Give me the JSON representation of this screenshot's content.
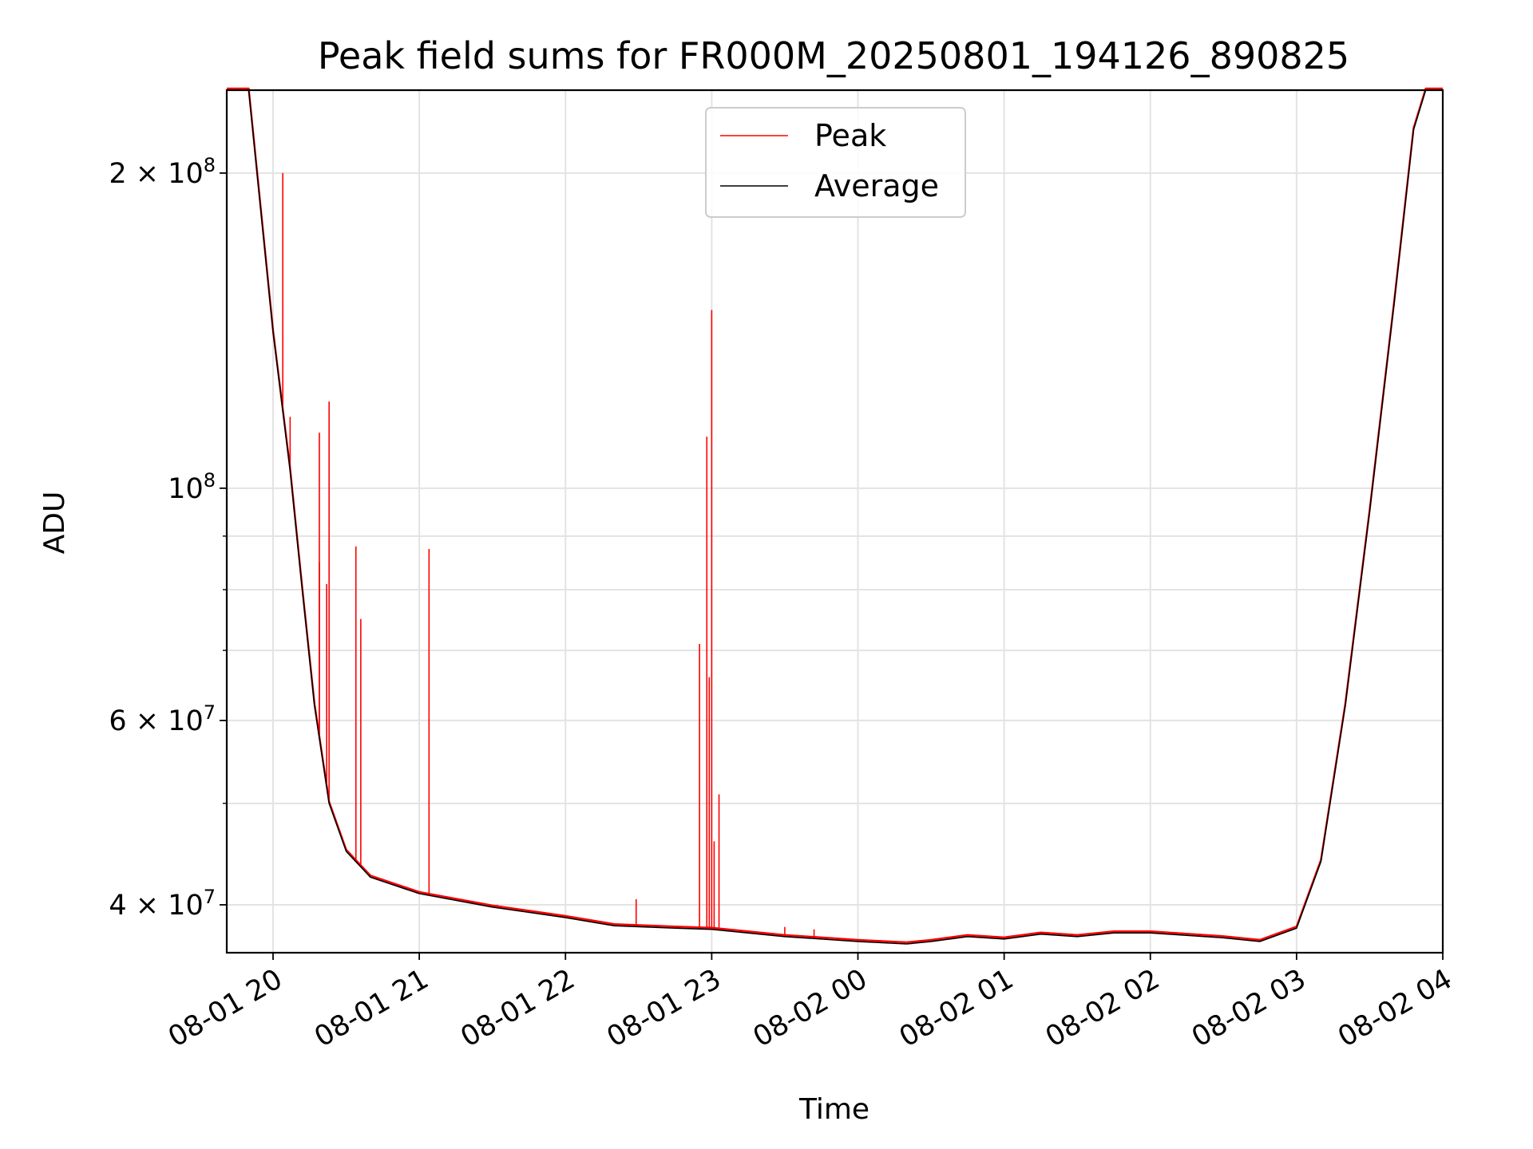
{
  "chart_data": {
    "type": "line",
    "title": "Peak field sums for FR000M_20250801_194126_890825",
    "xlabel": "Time",
    "ylabel": "ADU",
    "yscale": "log",
    "ylim": [
      36000000,
      240000000
    ],
    "xlim": [
      "2025-08-01 19:41",
      "2025-08-02 04:00"
    ],
    "grid": true,
    "legend_position": "top-center",
    "x_ticks": [
      "08-01 20",
      "08-01 21",
      "08-01 22",
      "08-01 23",
      "08-02 00",
      "08-02 01",
      "08-02 02",
      "08-02 03",
      "08-02 04"
    ],
    "x_tick_times": [
      "2025-08-01 20:00",
      "2025-08-01 21:00",
      "2025-08-01 22:00",
      "2025-08-01 23:00",
      "2025-08-02 00:00",
      "2025-08-02 01:00",
      "2025-08-02 02:00",
      "2025-08-02 03:00",
      "2025-08-02 04:00"
    ],
    "y_major_ticks": [
      {
        "value": 40000000,
        "mantissa": "4",
        "exp": "7"
      },
      {
        "value": 60000000,
        "mantissa": "6",
        "exp": "7"
      },
      {
        "value": 100000000,
        "mantissa": "",
        "exp": "8"
      },
      {
        "value": 200000000,
        "mantissa": "2",
        "exp": "8"
      }
    ],
    "y_minor_gridlines": [
      50000000,
      70000000,
      80000000,
      90000000
    ],
    "series": [
      {
        "name": "Peak",
        "color": "#ff0000",
        "spikes": [
          {
            "time": "2025-08-01 20:04",
            "value": 200000000
          },
          {
            "time": "2025-08-01 20:07",
            "value": 117000000
          },
          {
            "time": "2025-08-01 20:19",
            "value": 113000000
          },
          {
            "time": "2025-08-01 20:19",
            "value": 85000000
          },
          {
            "time": "2025-08-01 20:22",
            "value": 81000000
          },
          {
            "time": "2025-08-01 20:23",
            "value": 121000000
          },
          {
            "time": "2025-08-01 20:34",
            "value": 88000000
          },
          {
            "time": "2025-08-01 20:36",
            "value": 75000000
          },
          {
            "time": "2025-08-01 21:04",
            "value": 87500000
          },
          {
            "time": "2025-08-01 21:32",
            "value": 40000000
          },
          {
            "time": "2025-08-01 22:29",
            "value": 40500000
          },
          {
            "time": "2025-08-01 22:55",
            "value": 71000000
          },
          {
            "time": "2025-08-01 22:58",
            "value": 112000000
          },
          {
            "time": "2025-08-01 22:59",
            "value": 66000000
          },
          {
            "time": "2025-08-01 23:00",
            "value": 148000000
          },
          {
            "time": "2025-08-01 23:01",
            "value": 46000000
          },
          {
            "time": "2025-08-01 23:03",
            "value": 51000000
          },
          {
            "time": "2025-08-01 23:30",
            "value": 38100000
          },
          {
            "time": "2025-08-01 23:42",
            "value": 37900000
          }
        ]
      },
      {
        "name": "Average",
        "color": "#000000",
        "points": [
          [
            "2025-08-01 19:41",
            240000000
          ],
          [
            "2025-08-01 19:50",
            240000000
          ],
          [
            "2025-08-01 20:00",
            141000000
          ],
          [
            "2025-08-01 20:07",
            104000000
          ],
          [
            "2025-08-01 20:12",
            80000000
          ],
          [
            "2025-08-01 20:17",
            62000000
          ],
          [
            "2025-08-01 20:23",
            50000000
          ],
          [
            "2025-08-01 20:30",
            45000000
          ],
          [
            "2025-08-01 20:40",
            42500000
          ],
          [
            "2025-08-01 21:00",
            41000000
          ],
          [
            "2025-08-01 21:30",
            39800000
          ],
          [
            "2025-08-01 22:00",
            38900000
          ],
          [
            "2025-08-01 22:20",
            38200000
          ],
          [
            "2025-08-01 22:45",
            38000000
          ],
          [
            "2025-08-01 23:00",
            37900000
          ],
          [
            "2025-08-01 23:30",
            37300000
          ],
          [
            "2025-08-02 00:00",
            36900000
          ],
          [
            "2025-08-02 00:20",
            36700000
          ],
          [
            "2025-08-02 00:30",
            36900000
          ],
          [
            "2025-08-02 00:45",
            37300000
          ],
          [
            "2025-08-02 01:00",
            37100000
          ],
          [
            "2025-08-02 01:15",
            37500000
          ],
          [
            "2025-08-02 01:30",
            37300000
          ],
          [
            "2025-08-02 01:45",
            37600000
          ],
          [
            "2025-08-02 02:00",
            37600000
          ],
          [
            "2025-08-02 02:30",
            37200000
          ],
          [
            "2025-08-02 02:45",
            36900000
          ],
          [
            "2025-08-02 03:00",
            38000000
          ],
          [
            "2025-08-02 03:10",
            44000000
          ],
          [
            "2025-08-02 03:20",
            62000000
          ],
          [
            "2025-08-02 03:30",
            95000000
          ],
          [
            "2025-08-02 03:40",
            150000000
          ],
          [
            "2025-08-02 03:48",
            220000000
          ],
          [
            "2025-08-02 03:53",
            240000000
          ],
          [
            "2025-08-02 04:00",
            240000000
          ]
        ]
      }
    ]
  }
}
